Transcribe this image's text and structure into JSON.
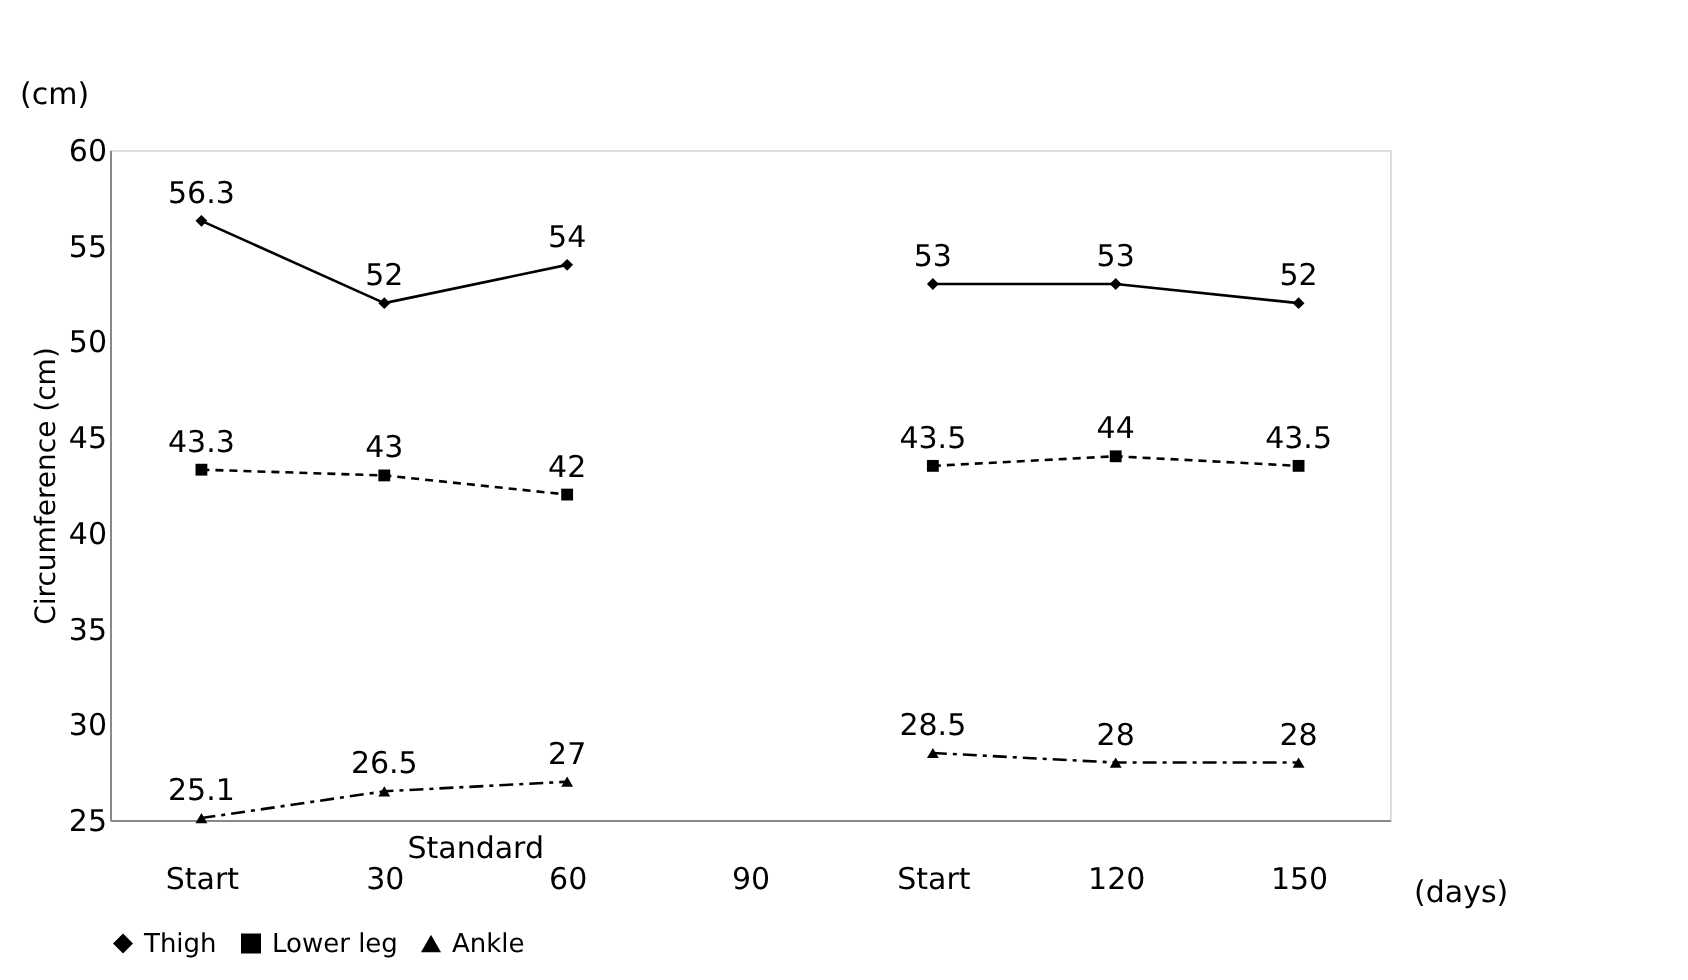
{
  "chart_data": {
    "type": "line",
    "ylabel": "Circumference (cm)",
    "annotations": [
      "(cm)",
      "Standard",
      "(days)"
    ],
    "categories": [
      "Start",
      "30",
      "60",
      "90",
      "Start",
      "120",
      "150"
    ],
    "series": [
      {
        "name": "Thigh",
        "color": "#000000",
        "marker": "diamond",
        "line_style": "solid",
        "values": [
          56.3,
          52,
          54,
          null,
          53,
          53,
          52
        ]
      },
      {
        "name": "Lower leg",
        "color": "#000000",
        "marker": "square",
        "line_style": "dashed",
        "values": [
          43.3,
          43,
          42,
          null,
          43.5,
          44,
          43.5
        ]
      },
      {
        "name": "Ankle",
        "color": "#000000",
        "marker": "triangle",
        "line_style": "dashdot",
        "values": [
          25.1,
          26.5,
          27,
          null,
          28.5,
          28,
          28
        ]
      }
    ],
    "ylim": [
      25,
      60
    ],
    "yticks": [
      25,
      30,
      35,
      40,
      45,
      50,
      55,
      60
    ],
    "grid": false,
    "legend": "bottom",
    "data_labels": true
  }
}
